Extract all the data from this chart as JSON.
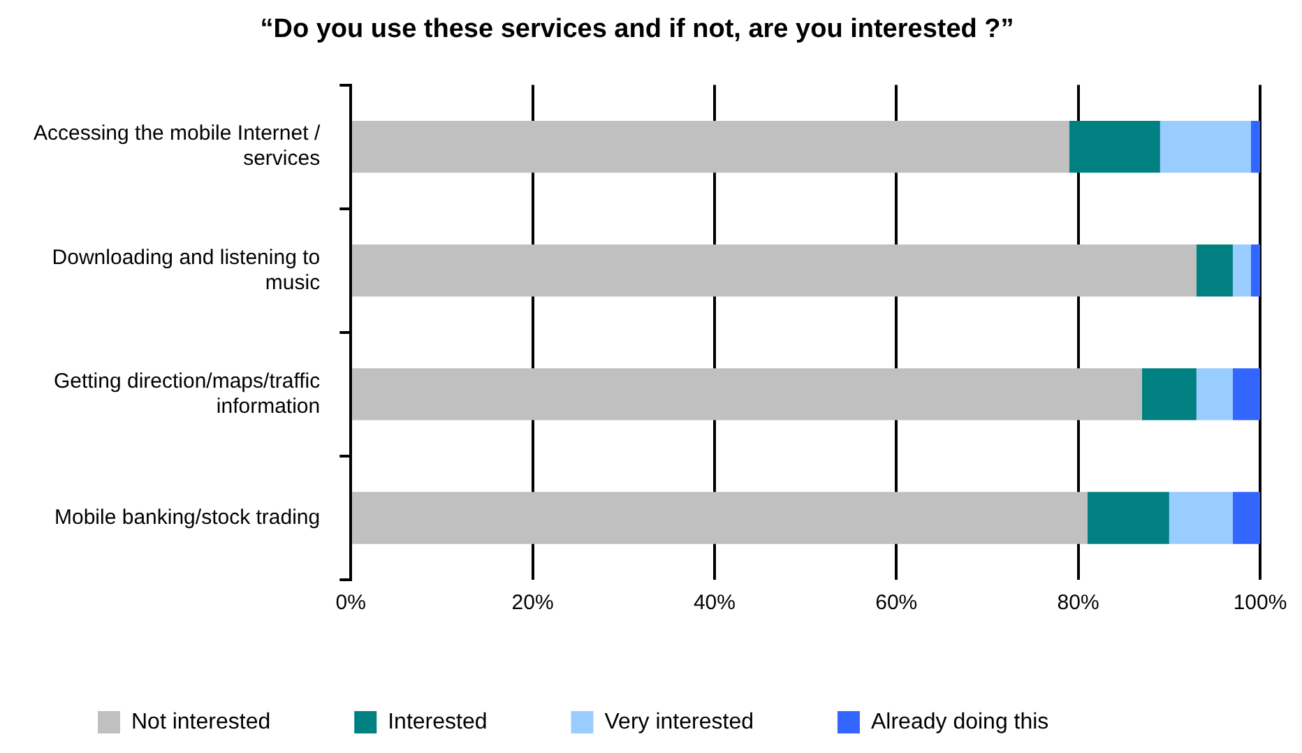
{
  "chart_data": {
    "type": "bar",
    "orientation": "horizontal",
    "stacked": true,
    "title": "“Do you use these services and if not, are you interested ?”",
    "categories": [
      "Accessing the mobile Internet / services",
      "Downloading and listening to music",
      "Getting direction/maps/traffic information",
      "Mobile banking/stock trading"
    ],
    "series": [
      {
        "name": "Not interested",
        "color": "#c0c0c0",
        "values": [
          79,
          93,
          87,
          81
        ]
      },
      {
        "name": "Interested",
        "color": "#008080",
        "values": [
          10,
          4,
          6,
          9
        ]
      },
      {
        "name": "Very interested",
        "color": "#99ccff",
        "values": [
          10,
          2,
          4,
          7
        ]
      },
      {
        "name": "Already doing this",
        "color": "#3366ff",
        "values": [
          1,
          1,
          3,
          3
        ]
      }
    ],
    "xlim": [
      0,
      100
    ],
    "xticks": [
      {
        "value": 0,
        "label": "0%"
      },
      {
        "value": 20,
        "label": "20%"
      },
      {
        "value": 40,
        "label": "40%"
      },
      {
        "value": 60,
        "label": "60%"
      },
      {
        "value": 80,
        "label": "80%"
      },
      {
        "value": 100,
        "label": "100%"
      }
    ],
    "grid": "x",
    "legend": "bottom"
  }
}
